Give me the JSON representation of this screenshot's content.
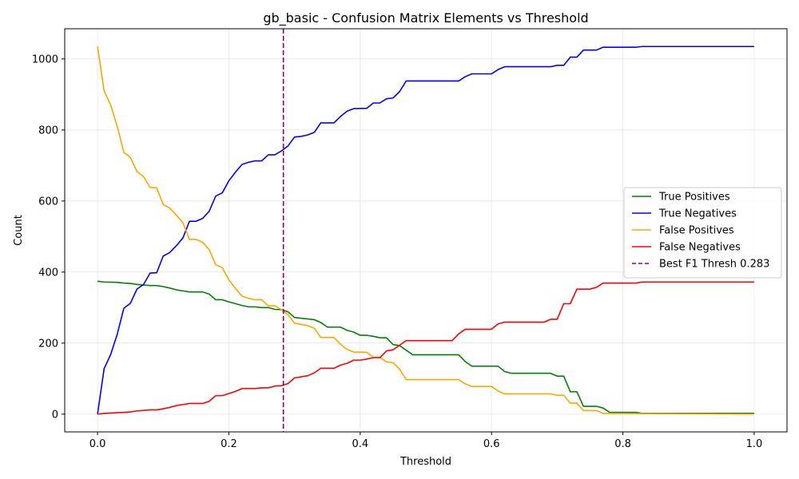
{
  "chart_data": {
    "type": "line",
    "title": "gb_basic - Confusion Matrix Elements vs Threshold",
    "xlabel": "Threshold",
    "ylabel": "Count",
    "xlim": [
      -0.05,
      1.05
    ],
    "ylim": [
      -50,
      1085
    ],
    "xticks": [
      0.0,
      0.2,
      0.4,
      0.6,
      0.8,
      1.0
    ],
    "xtick_labels": [
      "0.0",
      "0.2",
      "0.4",
      "0.6",
      "0.8",
      "1.0"
    ],
    "yticks": [
      0,
      200,
      400,
      600,
      800,
      1000
    ],
    "ytick_labels": [
      "0",
      "200",
      "400",
      "600",
      "800",
      "1000"
    ],
    "grid": true,
    "legend_position": "center-right",
    "series": [
      {
        "name": "True Positives",
        "color": "#008000",
        "points": [
          [
            0.0,
            374
          ],
          [
            0.01,
            372
          ],
          [
            0.03,
            371
          ],
          [
            0.04,
            369
          ],
          [
            0.05,
            368
          ],
          [
            0.06,
            365
          ],
          [
            0.08,
            362
          ],
          [
            0.09,
            362
          ],
          [
            0.1,
            359
          ],
          [
            0.11,
            355
          ],
          [
            0.12,
            350
          ],
          [
            0.13,
            347
          ],
          [
            0.14,
            344
          ],
          [
            0.16,
            344
          ],
          [
            0.17,
            338
          ],
          [
            0.18,
            322
          ],
          [
            0.19,
            322
          ],
          [
            0.2,
            316
          ],
          [
            0.22,
            306
          ],
          [
            0.23,
            302
          ],
          [
            0.24,
            302
          ],
          [
            0.25,
            300
          ],
          [
            0.26,
            300
          ],
          [
            0.27,
            295
          ],
          [
            0.28,
            294
          ],
          [
            0.29,
            288
          ],
          [
            0.3,
            272
          ],
          [
            0.32,
            268
          ],
          [
            0.33,
            266
          ],
          [
            0.34,
            258
          ],
          [
            0.35,
            245
          ],
          [
            0.37,
            245
          ],
          [
            0.38,
            236
          ],
          [
            0.39,
            231
          ],
          [
            0.4,
            222
          ],
          [
            0.41,
            222
          ],
          [
            0.42,
            219
          ],
          [
            0.43,
            215
          ],
          [
            0.44,
            215
          ],
          [
            0.45,
            196
          ],
          [
            0.46,
            193
          ],
          [
            0.47,
            180
          ],
          [
            0.48,
            167
          ],
          [
            0.55,
            167
          ],
          [
            0.56,
            148
          ],
          [
            0.57,
            135
          ],
          [
            0.61,
            135
          ],
          [
            0.62,
            120
          ],
          [
            0.63,
            115
          ],
          [
            0.69,
            115
          ],
          [
            0.7,
            107
          ],
          [
            0.71,
            107
          ],
          [
            0.72,
            63
          ],
          [
            0.73,
            63
          ],
          [
            0.74,
            22
          ],
          [
            0.76,
            22
          ],
          [
            0.77,
            17
          ],
          [
            0.78,
            5
          ],
          [
            0.82,
            5
          ],
          [
            0.83,
            2
          ],
          [
            1.0,
            2
          ]
        ]
      },
      {
        "name": "True Negatives",
        "color": "#0000ff",
        "points": [
          [
            0.0,
            0
          ],
          [
            0.01,
            128
          ],
          [
            0.02,
            168
          ],
          [
            0.03,
            225
          ],
          [
            0.04,
            298
          ],
          [
            0.05,
            312
          ],
          [
            0.06,
            352
          ],
          [
            0.07,
            365
          ],
          [
            0.08,
            397
          ],
          [
            0.09,
            398
          ],
          [
            0.1,
            445
          ],
          [
            0.11,
            455
          ],
          [
            0.12,
            474
          ],
          [
            0.13,
            496
          ],
          [
            0.14,
            543
          ],
          [
            0.15,
            543
          ],
          [
            0.16,
            551
          ],
          [
            0.17,
            571
          ],
          [
            0.18,
            614
          ],
          [
            0.19,
            623
          ],
          [
            0.2,
            657
          ],
          [
            0.21,
            681
          ],
          [
            0.22,
            703
          ],
          [
            0.23,
            709
          ],
          [
            0.24,
            713
          ],
          [
            0.25,
            713
          ],
          [
            0.26,
            730
          ],
          [
            0.27,
            730
          ],
          [
            0.28,
            741
          ],
          [
            0.29,
            755
          ],
          [
            0.3,
            780
          ],
          [
            0.31,
            782
          ],
          [
            0.32,
            786
          ],
          [
            0.33,
            793
          ],
          [
            0.34,
            820
          ],
          [
            0.36,
            820
          ],
          [
            0.37,
            838
          ],
          [
            0.38,
            853
          ],
          [
            0.39,
            860
          ],
          [
            0.41,
            861
          ],
          [
            0.42,
            876
          ],
          [
            0.43,
            876
          ],
          [
            0.44,
            888
          ],
          [
            0.45,
            890
          ],
          [
            0.46,
            908
          ],
          [
            0.47,
            938
          ],
          [
            0.55,
            938
          ],
          [
            0.56,
            950
          ],
          [
            0.57,
            958
          ],
          [
            0.6,
            958
          ],
          [
            0.61,
            970
          ],
          [
            0.62,
            978
          ],
          [
            0.69,
            978
          ],
          [
            0.7,
            982
          ],
          [
            0.71,
            982
          ],
          [
            0.72,
            1005
          ],
          [
            0.73,
            1005
          ],
          [
            0.74,
            1025
          ],
          [
            0.76,
            1025
          ],
          [
            0.77,
            1033
          ],
          [
            0.82,
            1033
          ],
          [
            0.83,
            1035
          ],
          [
            1.0,
            1035
          ]
        ]
      },
      {
        "name": "False Positives",
        "color": "#ffa500",
        "points": [
          [
            0.0,
            1035
          ],
          [
            0.01,
            910
          ],
          [
            0.02,
            870
          ],
          [
            0.03,
            810
          ],
          [
            0.04,
            737
          ],
          [
            0.05,
            723
          ],
          [
            0.06,
            683
          ],
          [
            0.07,
            669
          ],
          [
            0.08,
            638
          ],
          [
            0.09,
            637
          ],
          [
            0.1,
            590
          ],
          [
            0.11,
            580
          ],
          [
            0.12,
            560
          ],
          [
            0.13,
            539
          ],
          [
            0.14,
            492
          ],
          [
            0.15,
            492
          ],
          [
            0.16,
            484
          ],
          [
            0.17,
            463
          ],
          [
            0.18,
            421
          ],
          [
            0.19,
            412
          ],
          [
            0.2,
            378
          ],
          [
            0.21,
            354
          ],
          [
            0.22,
            332
          ],
          [
            0.23,
            326
          ],
          [
            0.24,
            322
          ],
          [
            0.25,
            322
          ],
          [
            0.26,
            305
          ],
          [
            0.27,
            305
          ],
          [
            0.28,
            294
          ],
          [
            0.29,
            280
          ],
          [
            0.3,
            256
          ],
          [
            0.31,
            253
          ],
          [
            0.32,
            249
          ],
          [
            0.33,
            242
          ],
          [
            0.34,
            216
          ],
          [
            0.36,
            216
          ],
          [
            0.37,
            197
          ],
          [
            0.38,
            182
          ],
          [
            0.39,
            175
          ],
          [
            0.41,
            174
          ],
          [
            0.42,
            160
          ],
          [
            0.43,
            160
          ],
          [
            0.44,
            147
          ],
          [
            0.45,
            145
          ],
          [
            0.46,
            127
          ],
          [
            0.47,
            97
          ],
          [
            0.55,
            97
          ],
          [
            0.56,
            85
          ],
          [
            0.57,
            78
          ],
          [
            0.6,
            78
          ],
          [
            0.61,
            65
          ],
          [
            0.62,
            57
          ],
          [
            0.69,
            57
          ],
          [
            0.7,
            53
          ],
          [
            0.71,
            53
          ],
          [
            0.72,
            31
          ],
          [
            0.73,
            31
          ],
          [
            0.74,
            10
          ],
          [
            0.76,
            10
          ],
          [
            0.77,
            2
          ],
          [
            1.0,
            0
          ]
        ]
      },
      {
        "name": "False Negatives",
        "color": "#ff0000",
        "points": [
          [
            0.0,
            0
          ],
          [
            0.01,
            2
          ],
          [
            0.02,
            3
          ],
          [
            0.03,
            4
          ],
          [
            0.04,
            5
          ],
          [
            0.05,
            6
          ],
          [
            0.06,
            9
          ],
          [
            0.08,
            12
          ],
          [
            0.09,
            12
          ],
          [
            0.1,
            15
          ],
          [
            0.11,
            19
          ],
          [
            0.12,
            24
          ],
          [
            0.13,
            27
          ],
          [
            0.14,
            30
          ],
          [
            0.16,
            30
          ],
          [
            0.17,
            36
          ],
          [
            0.18,
            52
          ],
          [
            0.19,
            52
          ],
          [
            0.2,
            58
          ],
          [
            0.21,
            64
          ],
          [
            0.22,
            72
          ],
          [
            0.24,
            72
          ],
          [
            0.25,
            74
          ],
          [
            0.26,
            74
          ],
          [
            0.27,
            79
          ],
          [
            0.28,
            80
          ],
          [
            0.29,
            86
          ],
          [
            0.3,
            102
          ],
          [
            0.31,
            105
          ],
          [
            0.32,
            108
          ],
          [
            0.33,
            116
          ],
          [
            0.34,
            129
          ],
          [
            0.36,
            129
          ],
          [
            0.37,
            138
          ],
          [
            0.38,
            143
          ],
          [
            0.39,
            152
          ],
          [
            0.4,
            152
          ],
          [
            0.41,
            155
          ],
          [
            0.42,
            159
          ],
          [
            0.43,
            159
          ],
          [
            0.44,
            178
          ],
          [
            0.45,
            181
          ],
          [
            0.46,
            194
          ],
          [
            0.47,
            207
          ],
          [
            0.54,
            207
          ],
          [
            0.55,
            226
          ],
          [
            0.56,
            239
          ],
          [
            0.6,
            239
          ],
          [
            0.61,
            254
          ],
          [
            0.62,
            259
          ],
          [
            0.68,
            259
          ],
          [
            0.69,
            267
          ],
          [
            0.7,
            267
          ],
          [
            0.71,
            311
          ],
          [
            0.72,
            311
          ],
          [
            0.73,
            352
          ],
          [
            0.75,
            352
          ],
          [
            0.76,
            357
          ],
          [
            0.77,
            369
          ],
          [
            0.82,
            369
          ],
          [
            0.83,
            372
          ],
          [
            1.0,
            372
          ]
        ]
      }
    ],
    "vline": {
      "name": "Best F1 Thresh 0.283",
      "x": 0.283,
      "color": "#800080",
      "style": "dashed"
    }
  }
}
